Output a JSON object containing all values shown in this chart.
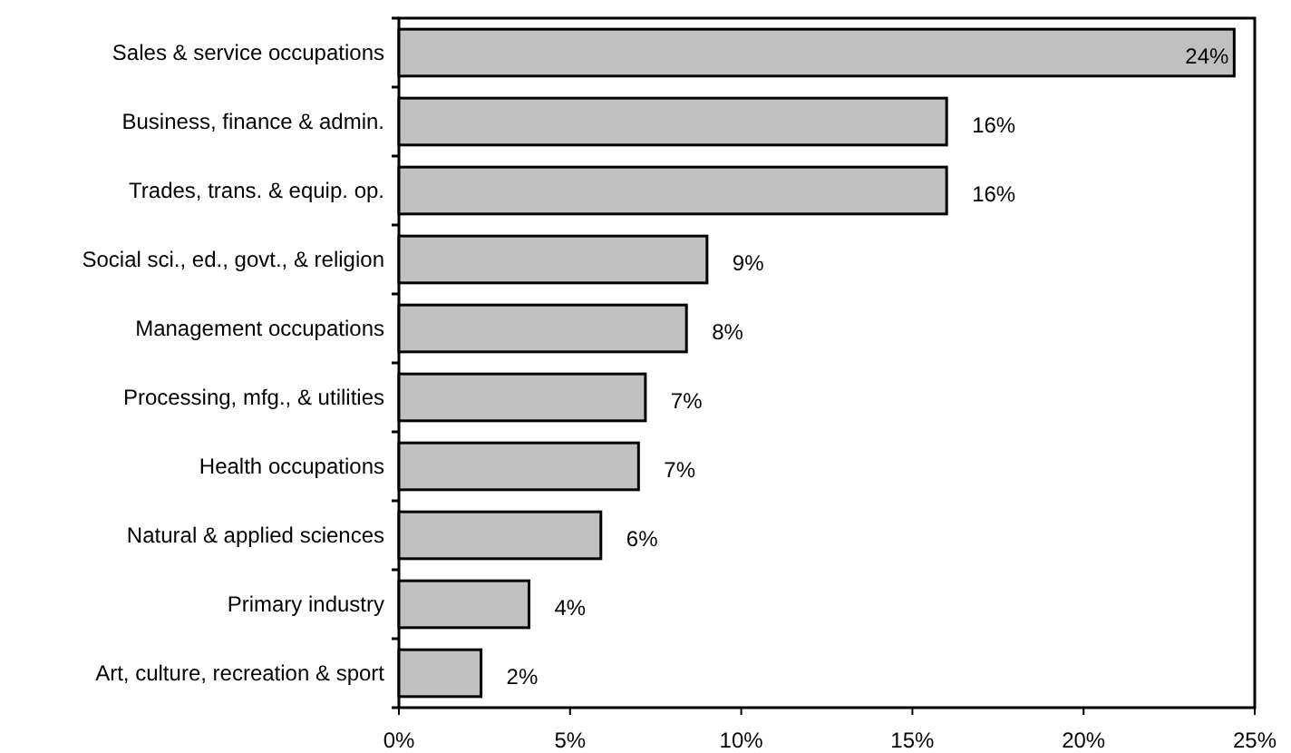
{
  "chart_data": {
    "type": "bar",
    "orientation": "horizontal",
    "categories": [
      "Sales & service occupations",
      "Business, finance & admin.",
      "Trades, trans. & equip. op.",
      "Social sci., ed., govt., & religion",
      "Management occupations",
      "Processing, mfg., & utilities",
      "Health occupations",
      "Natural & applied sciences",
      "Primary industry",
      "Art, culture, recreation & sport"
    ],
    "values": [
      24.4,
      16,
      16,
      9,
      8.4,
      7.2,
      7,
      5.9,
      3.8,
      2.4
    ],
    "value_labels": [
      "24%",
      "16%",
      "16%",
      "9%",
      "8%",
      "7%",
      "7%",
      "6%",
      "4%",
      "2%"
    ],
    "color": "#c0c0c0",
    "xlim": [
      0,
      25
    ],
    "xticks": [
      {
        "value": 0,
        "label": "0%"
      },
      {
        "value": 5,
        "label": "5%"
      },
      {
        "value": 10,
        "label": "10%"
      },
      {
        "value": 15,
        "label": "15%"
      },
      {
        "value": 20,
        "label": "20%"
      },
      {
        "value": 25,
        "label": "25%"
      }
    ],
    "grid": false
  }
}
